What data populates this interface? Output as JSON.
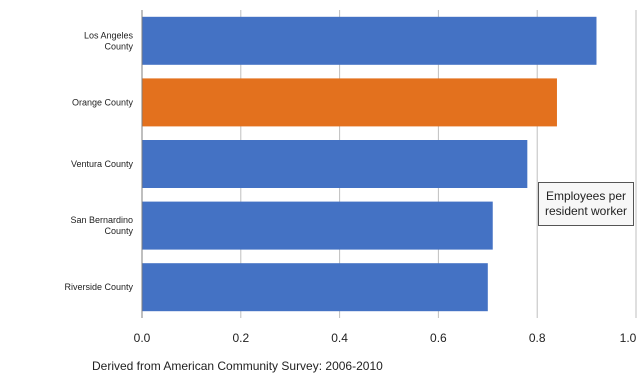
{
  "chart_data": {
    "type": "bar",
    "orientation": "horizontal",
    "categories": [
      [
        "Los Angeles",
        "County"
      ],
      [
        "Orange County"
      ],
      [
        "Ventura County"
      ],
      [
        "San Bernardino",
        "County"
      ],
      [
        "Riverside County"
      ]
    ],
    "values": [
      0.92,
      0.84,
      0.78,
      0.71,
      0.7
    ],
    "bar_colors": [
      "#4472c4",
      "#e3711e",
      "#4472c4",
      "#4472c4",
      "#4472c4"
    ],
    "xlim": [
      0.0,
      1.0
    ],
    "xticks": [
      "0.0",
      "0.2",
      "0.4",
      "0.6",
      "0.8",
      "1.0"
    ],
    "grid": "vertical",
    "annotation": [
      "Employees per",
      "resident worker"
    ],
    "source_note": "Derived from American Community Survey: 2006-2010"
  }
}
